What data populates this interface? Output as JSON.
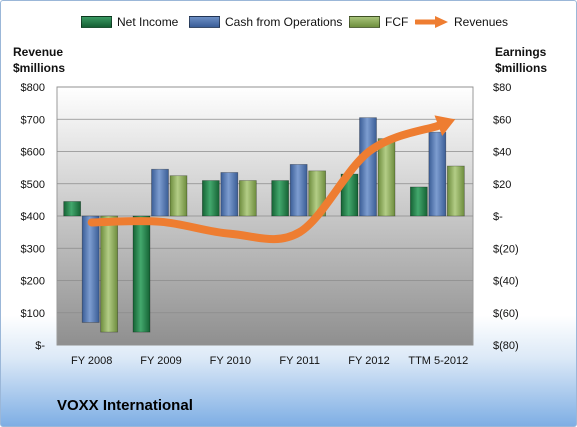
{
  "title": "VOXX International",
  "legend": [
    {
      "label": "Net Income",
      "color": "#1e7a45"
    },
    {
      "label": "Cash from Operations",
      "color": "#4a71ad"
    },
    {
      "label": "FCF",
      "color": "#8fae5b"
    },
    {
      "label": "Revenues",
      "color": "#ee7d31"
    }
  ],
  "left_axis_title": [
    "Revenue",
    "$millions"
  ],
  "right_axis_title": [
    "Earnings",
    "$millions"
  ],
  "chart_data": {
    "type": "bar",
    "categories": [
      "FY 2008",
      "FY 2009",
      "FY 2010",
      "FY 2011",
      "FY 2012",
      "TTM 5-2012"
    ],
    "series": [
      {
        "name": "Net Income",
        "axis": "right",
        "values": [
          9,
          -72,
          22,
          22,
          26,
          18
        ]
      },
      {
        "name": "Cash from Operations",
        "axis": "right",
        "values": [
          -66,
          29,
          27,
          32,
          61,
          52
        ]
      },
      {
        "name": "FCF",
        "axis": "right",
        "values": [
          -72,
          25,
          22,
          28,
          48,
          31
        ]
      },
      {
        "name": "Revenues",
        "type": "line",
        "axis": "left",
        "values": [
          380,
          382,
          345,
          350,
          600,
          680
        ]
      }
    ],
    "left_axis": {
      "ylim": [
        0,
        800
      ],
      "ticks": [
        "$-",
        "$100",
        "$200",
        "$300",
        "$400",
        "$500",
        "$600",
        "$700",
        "$800"
      ]
    },
    "right_axis": {
      "ylim": [
        -80,
        80
      ],
      "ticks": [
        "$(80)",
        "$(60)",
        "$(40)",
        "$(20)",
        "$-",
        "$20",
        "$40",
        "$60",
        "$80"
      ]
    },
    "grid": true,
    "legend_position": "top"
  }
}
